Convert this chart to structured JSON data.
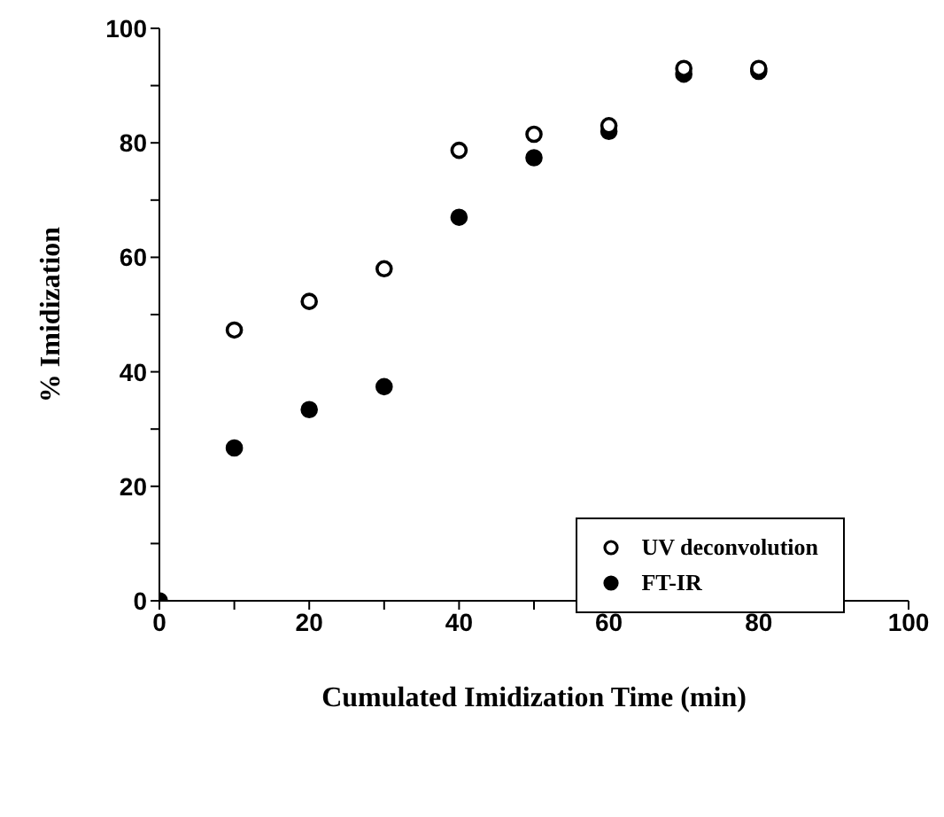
{
  "chart_data": {
    "type": "scatter",
    "xlabel": "Cumulated Imidization Time (min)",
    "ylabel": "% Imidization",
    "xlim": [
      0,
      100
    ],
    "ylim": [
      0,
      100
    ],
    "xticks": [
      0,
      {
        "value": 10,
        "label": null
      },
      20,
      {
        "value": 30,
        "label": null
      },
      40,
      {
        "value": 50,
        "label": null
      },
      60,
      {
        "value": 70,
        "label": null
      },
      80,
      {
        "value": 90,
        "label": null
      },
      100
    ],
    "yticks": [
      0,
      {
        "value": 10,
        "label": null
      },
      20,
      {
        "value": 30,
        "label": null
      },
      40,
      {
        "value": 50,
        "label": null
      },
      60,
      {
        "value": 70,
        "label": null
      },
      80,
      {
        "value": 90,
        "label": null
      },
      100
    ],
    "grid": false,
    "legend": "bottom right",
    "marker": "circle",
    "series": [
      {
        "name": "UV deconvolution",
        "color": "#000000",
        "marker": "open circle",
        "x": [
          10,
          20,
          30,
          40,
          50,
          60,
          70,
          80
        ],
        "values": [
          47.3,
          52.3,
          58,
          78.7,
          81.5,
          83,
          93,
          93
        ]
      },
      {
        "name": "FT-IR",
        "color": "#000000",
        "x": [
          0,
          10,
          20,
          30,
          40,
          50,
          60,
          70,
          80
        ],
        "values": [
          0,
          26.7,
          33.4,
          37.4,
          67,
          77.4,
          82,
          92,
          92.5
        ]
      }
    ]
  }
}
